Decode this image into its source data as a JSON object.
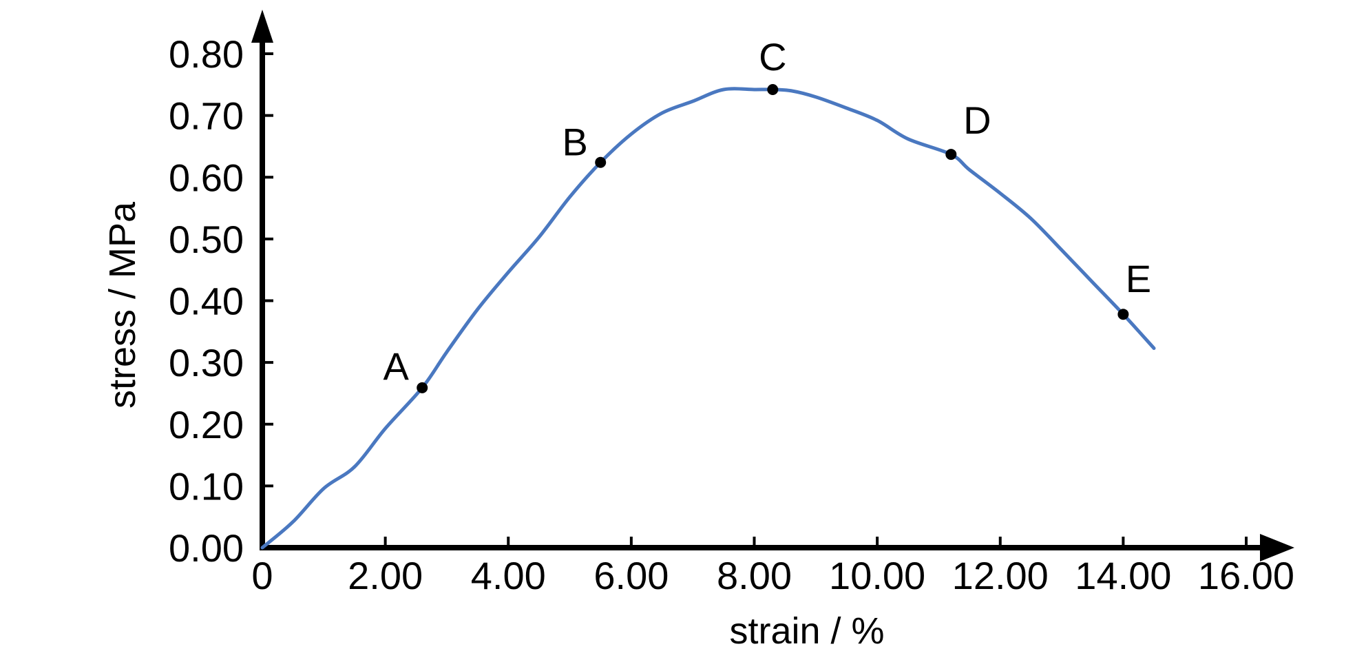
{
  "chart_data": {
    "type": "line",
    "title": "",
    "xlabel": "strain / %",
    "ylabel": "stress / MPa",
    "xlim": [
      0,
      16
    ],
    "ylim": [
      0,
      0.8
    ],
    "grid": false,
    "x_ticks": [
      {
        "value": 0,
        "label": "0"
      },
      {
        "value": 2,
        "label": "2.00"
      },
      {
        "value": 4,
        "label": "4.00"
      },
      {
        "value": 6,
        "label": "6.00"
      },
      {
        "value": 8,
        "label": "8.00"
      },
      {
        "value": 10,
        "label": "10.00"
      },
      {
        "value": 12,
        "label": "12.00"
      },
      {
        "value": 14,
        "label": "14.00"
      },
      {
        "value": 16,
        "label": "16.00"
      }
    ],
    "y_ticks": [
      {
        "value": 0.0,
        "label": "0.00"
      },
      {
        "value": 0.1,
        "label": "0.10"
      },
      {
        "value": 0.2,
        "label": "0.20"
      },
      {
        "value": 0.3,
        "label": "0.30"
      },
      {
        "value": 0.4,
        "label": "0.40"
      },
      {
        "value": 0.5,
        "label": "0.50"
      },
      {
        "value": 0.6,
        "label": "0.60"
      },
      {
        "value": 0.7,
        "label": "0.70"
      },
      {
        "value": 0.8,
        "label": "0.80"
      }
    ],
    "series": [
      {
        "color": "#4a78c0",
        "x": [
          0,
          0.5,
          1.0,
          1.5,
          2.0,
          2.6,
          3.0,
          3.5,
          4.0,
          4.5,
          5.0,
          5.5,
          6.0,
          6.5,
          7.0,
          7.5,
          8.0,
          8.3,
          8.6,
          9.0,
          9.5,
          10.0,
          10.5,
          11.2,
          11.5,
          12.0,
          12.5,
          13.0,
          13.5,
          14.0,
          14.5
        ],
        "y": [
          0.0,
          0.042,
          0.096,
          0.131,
          0.193,
          0.259,
          0.317,
          0.386,
          0.446,
          0.503,
          0.568,
          0.624,
          0.67,
          0.704,
          0.723,
          0.742,
          0.742,
          0.742,
          0.74,
          0.73,
          0.712,
          0.692,
          0.662,
          0.637,
          0.612,
          0.574,
          0.533,
          0.482,
          0.43,
          0.378,
          0.323
        ]
      }
    ],
    "points": [
      {
        "label": "A",
        "x": 2.6,
        "y": 0.259
      },
      {
        "label": "B",
        "x": 5.5,
        "y": 0.624
      },
      {
        "label": "C",
        "x": 8.3,
        "y": 0.742
      },
      {
        "label": "D",
        "x": 11.2,
        "y": 0.637
      },
      {
        "label": "E",
        "x": 14.0,
        "y": 0.378
      }
    ]
  }
}
